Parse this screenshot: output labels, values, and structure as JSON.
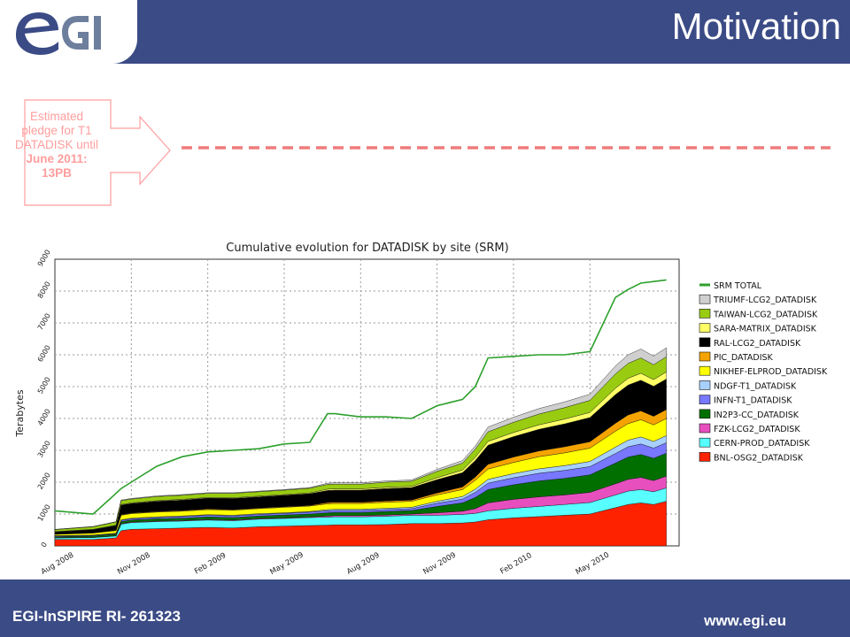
{
  "slide": {
    "title": "Motivation",
    "logo_text": "eGI",
    "callout_line1": "Estimated",
    "callout_line2": "pledge for T1",
    "callout_line3": "DATADISK until",
    "callout_line4": "June 2011:",
    "callout_line5": "13PB",
    "footer_left": "EGI-InSPIRE RI- 261323",
    "footer_right": "www.egi.eu",
    "colors": {
      "bar": "#3b4b86",
      "accent": "#ff9d9d",
      "pledge_line": "#ef7b7b"
    }
  },
  "chart_data": {
    "type": "area",
    "title": "Cumulative evolution for DATADISK by site (SRM)",
    "ylabel": "Terabytes",
    "ylim": [
      0,
      9000
    ],
    "yticks": [
      "0",
      "1000",
      "2000",
      "3000",
      "4000",
      "5000",
      "6000",
      "7000",
      "8000",
      "9000"
    ],
    "x_ticks": [
      "Aug 2008",
      "Nov 2008",
      "Feb 2009",
      "May 2009",
      "Aug 2009",
      "Nov 2009",
      "Feb 2010",
      "May 2010"
    ],
    "x_tick_months": [
      0,
      3,
      6,
      9,
      12,
      15,
      18,
      21
    ],
    "x_range_months": [
      0,
      24.5
    ],
    "grid": true,
    "legend_position": "right",
    "x_months": [
      0,
      1.5,
      2.4,
      2.6,
      3.0,
      4.0,
      5.0,
      6.0,
      7.0,
      8.0,
      9.0,
      10.0,
      10.7,
      11.0,
      12.0,
      13.0,
      14.0,
      15.0,
      16.0,
      16.5,
      17.0,
      18.0,
      19.0,
      20.0,
      21.0,
      22.0,
      22.5,
      23.0,
      23.5,
      24.0
    ],
    "total_series": {
      "name": "SRM TOTAL",
      "color": "#2ca02c",
      "values": [
        1100,
        1000,
        1650,
        1800,
        2000,
        2500,
        2800,
        2950,
        3000,
        3050,
        3200,
        3250,
        4150,
        4150,
        4050,
        4050,
        4000,
        4400,
        4600,
        5000,
        5900,
        5950,
        6000,
        6000,
        6100,
        7800,
        8050,
        8250,
        8300,
        8350
      ]
    },
    "series": [
      {
        "name": "BNL-OSG2_DATADISK",
        "color": "#ff2200",
        "values": [
          200,
          200,
          250,
          480,
          520,
          540,
          560,
          580,
          560,
          600,
          620,
          640,
          650,
          660,
          660,
          670,
          700,
          700,
          720,
          750,
          820,
          880,
          920,
          960,
          1000,
          1200,
          1300,
          1350,
          1300,
          1400
        ]
      },
      {
        "name": "CERN-PROD_DATADISK",
        "color": "#57ffff",
        "values": [
          50,
          60,
          60,
          200,
          210,
          220,
          220,
          230,
          230,
          240,
          240,
          250,
          250,
          250,
          250,
          260,
          260,
          260,
          270,
          270,
          280,
          300,
          320,
          340,
          360,
          400,
          420,
          420,
          400,
          420
        ]
      },
      {
        "name": "FZK-LCG2_DATADISK",
        "color": "#e74fbe",
        "values": [
          10,
          10,
          10,
          20,
          20,
          20,
          20,
          20,
          20,
          20,
          20,
          20,
          40,
          40,
          40,
          40,
          40,
          80,
          100,
          150,
          250,
          280,
          300,
          300,
          320,
          350,
          370,
          380,
          350,
          370
        ]
      },
      {
        "name": "IN2P3-CC_DATADISK",
        "color": "#006f00",
        "values": [
          30,
          40,
          50,
          60,
          60,
          70,
          70,
          80,
          80,
          80,
          90,
          90,
          100,
          100,
          100,
          110,
          110,
          200,
          260,
          350,
          420,
          460,
          500,
          520,
          550,
          650,
          700,
          720,
          700,
          720
        ]
      },
      {
        "name": "INFN-T1_DATADISK",
        "color": "#7777ff",
        "values": [
          20,
          20,
          20,
          40,
          40,
          40,
          50,
          50,
          50,
          50,
          50,
          60,
          60,
          60,
          60,
          60,
          60,
          100,
          120,
          160,
          200,
          220,
          240,
          250,
          260,
          300,
          320,
          330,
          320,
          330
        ]
      },
      {
        "name": "NDGF-T1_DATADISK",
        "color": "#a8d0ff",
        "values": [
          10,
          10,
          10,
          20,
          20,
          20,
          20,
          20,
          20,
          20,
          20,
          20,
          40,
          40,
          40,
          40,
          40,
          60,
          80,
          100,
          120,
          130,
          140,
          150,
          160,
          200,
          210,
          220,
          210,
          220
        ]
      },
      {
        "name": "NIKHEF-ELPROD_DATADISK",
        "color": "#ffff00",
        "values": [
          40,
          60,
          80,
          140,
          140,
          150,
          150,
          160,
          160,
          160,
          170,
          170,
          180,
          180,
          180,
          190,
          190,
          200,
          220,
          280,
          320,
          350,
          380,
          400,
          420,
          500,
          520,
          540,
          520,
          540
        ]
      },
      {
        "name": "PIC_DATADISK",
        "color": "#f5a300",
        "values": [
          10,
          10,
          10,
          20,
          20,
          20,
          20,
          20,
          20,
          20,
          20,
          20,
          40,
          40,
          40,
          40,
          40,
          60,
          80,
          100,
          150,
          170,
          180,
          190,
          200,
          250,
          270,
          280,
          270,
          280
        ]
      },
      {
        "name": "RAL-LCG2_DATADISK",
        "color": "#000000",
        "values": [
          70,
          100,
          150,
          300,
          300,
          320,
          330,
          340,
          350,
          350,
          360,
          370,
          380,
          380,
          380,
          390,
          390,
          420,
          450,
          520,
          600,
          640,
          680,
          720,
          760,
          900,
          940,
          960,
          940,
          960
        ]
      },
      {
        "name": "SARA-MATRIX_DATADISK",
        "color": "#ffff66",
        "values": [
          10,
          10,
          10,
          20,
          20,
          20,
          20,
          20,
          20,
          20,
          20,
          20,
          40,
          40,
          40,
          40,
          40,
          60,
          80,
          100,
          120,
          130,
          140,
          150,
          160,
          200,
          210,
          220,
          210,
          220
        ]
      },
      {
        "name": "TAIWAN-LCG2_DATADISK",
        "color": "#99cc11",
        "values": [
          60,
          80,
          100,
          120,
          120,
          130,
          130,
          130,
          140,
          140,
          140,
          150,
          150,
          150,
          150,
          160,
          160,
          200,
          220,
          260,
          300,
          320,
          340,
          360,
          380,
          450,
          470,
          480,
          470,
          480
        ]
      },
      {
        "name": "TRIUMF-LCG2_DATADISK",
        "color": "#cfcfcf",
        "values": [
          10,
          10,
          10,
          20,
          20,
          20,
          20,
          20,
          20,
          20,
          20,
          20,
          40,
          40,
          40,
          40,
          40,
          60,
          80,
          100,
          150,
          160,
          170,
          180,
          190,
          250,
          270,
          280,
          270,
          280
        ]
      }
    ]
  }
}
